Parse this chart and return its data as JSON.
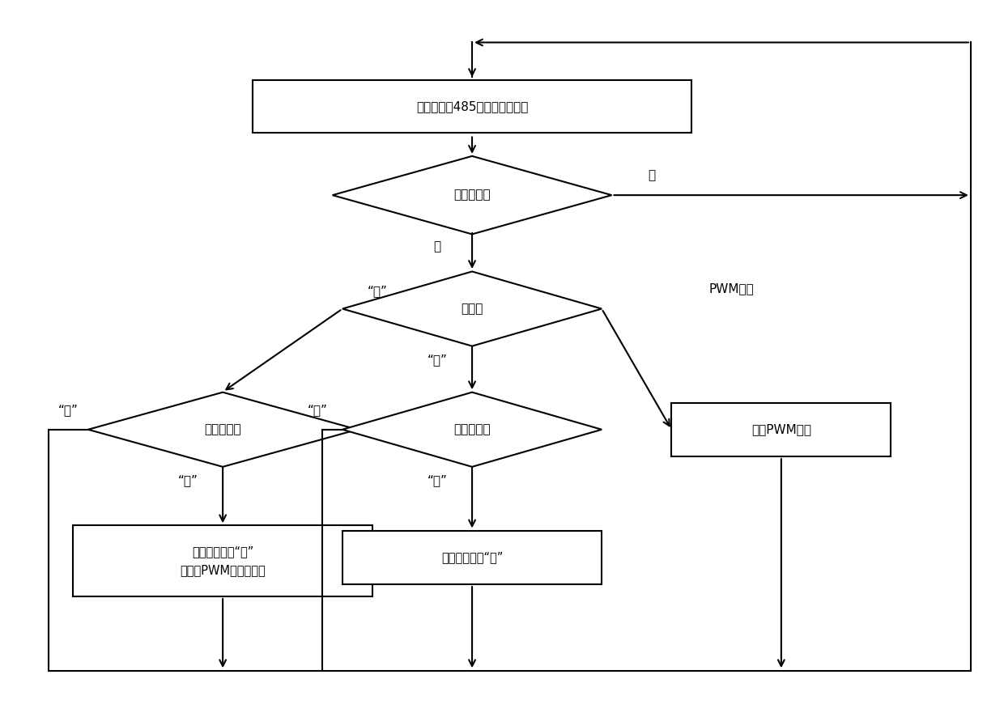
{
  "bg_color": "#ffffff",
  "line_color": "#000000",
  "box_color": "#ffffff",
  "text_color": "#000000",
  "figsize": [
    12.4,
    8.86
  ],
  "dpi": 100,
  "rect1_label": "侦听并接收485总线上的广播帧",
  "diamond1_label": "发给本站？",
  "diamond2_label": "命令？",
  "diamond3_label": "当前状态？",
  "diamond4_label": "当前状态？",
  "rect2_label": "当前状态设为“开”\n初始化PWM生成计时器",
  "rect3_label": "当前状态设为“关”",
  "rect4_label": "修改PWM参数",
  "label_no": "否",
  "label_yes": "是",
  "label_open": "“开”",
  "label_close": "“关”",
  "label_pwm": "PWM参数"
}
